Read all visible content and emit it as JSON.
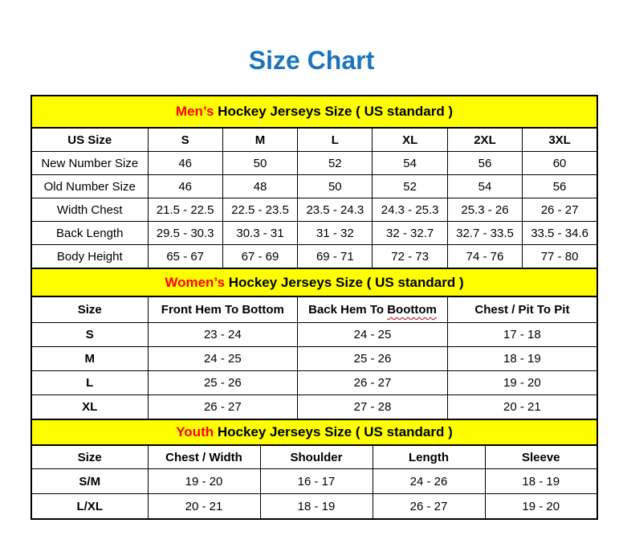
{
  "title": "Size Chart",
  "colors": {
    "title_blue": "#1C74BE",
    "band_yellow": "#FFFF00",
    "highlight_red": "#FF0000",
    "squiggle_red": "#C00000",
    "border_black": "#000000"
  },
  "tables": [
    {
      "name": "mens",
      "heading": {
        "highlight": "Men’s",
        "rest": " Hockey Jerseys Size ( US standard )"
      },
      "columns": [
        "US Size",
        "S",
        "M",
        "L",
        "XL",
        "2XL",
        "3XL"
      ],
      "rows": [
        {
          "label": "New Number Size",
          "values": [
            "46",
            "50",
            "52",
            "54",
            "56",
            "60"
          ]
        },
        {
          "label": "Old Number Size",
          "values": [
            "46",
            "48",
            "50",
            "52",
            "54",
            "56"
          ]
        },
        {
          "label": "Width Chest",
          "values": [
            "21.5 - 22.5",
            "22.5 - 23.5",
            "23.5 - 24.3",
            "24.3 - 25.3",
            "25.3 - 26",
            "26 - 27"
          ]
        },
        {
          "label": "Back Length",
          "values": [
            "29.5 - 30.3",
            "30.3 - 31",
            "31 - 32",
            "32 - 32.7",
            "32.7 - 33.5",
            "33.5 - 34.6"
          ]
        },
        {
          "label": "Body Height",
          "values": [
            "65 - 67",
            "67 - 69",
            "69 - 71",
            "72 - 73",
            "74 - 76",
            "77 - 80"
          ]
        }
      ]
    },
    {
      "name": "womens",
      "heading": {
        "highlight": "Women’s",
        "rest": " Hockey Jerseys Size ( US standard )"
      },
      "columns": [
        "Size",
        "Front Hem To Bottom",
        {
          "prefix": "Back Hem To ",
          "word": "Boottom"
        },
        "Chest / Pit To Pit"
      ],
      "rows": [
        {
          "label": "S",
          "values": [
            "23 - 24",
            "24 - 25",
            "17 - 18"
          ]
        },
        {
          "label": "M",
          "values": [
            "24 - 25",
            "25 - 26",
            "18 - 19"
          ]
        },
        {
          "label": "L",
          "values": [
            "25 - 26",
            "26 - 27",
            "19 - 20"
          ]
        },
        {
          "label": "XL",
          "values": [
            "26 - 27",
            "27 - 28",
            "20 - 21"
          ]
        }
      ]
    },
    {
      "name": "youth",
      "heading": {
        "highlight": "Youth",
        "rest": " Hockey Jerseys Size ( US standard )"
      },
      "columns": [
        "Size",
        "Chest / Width",
        "Shoulder",
        "Length",
        "Sleeve"
      ],
      "rows": [
        {
          "label": "S/M",
          "values": [
            "19 - 20",
            "16 - 17",
            "24 - 26",
            "18 - 19"
          ]
        },
        {
          "label": "L/XL",
          "values": [
            "20 - 21",
            "18 - 19",
            "26 - 27",
            "19 - 20"
          ]
        }
      ]
    }
  ]
}
